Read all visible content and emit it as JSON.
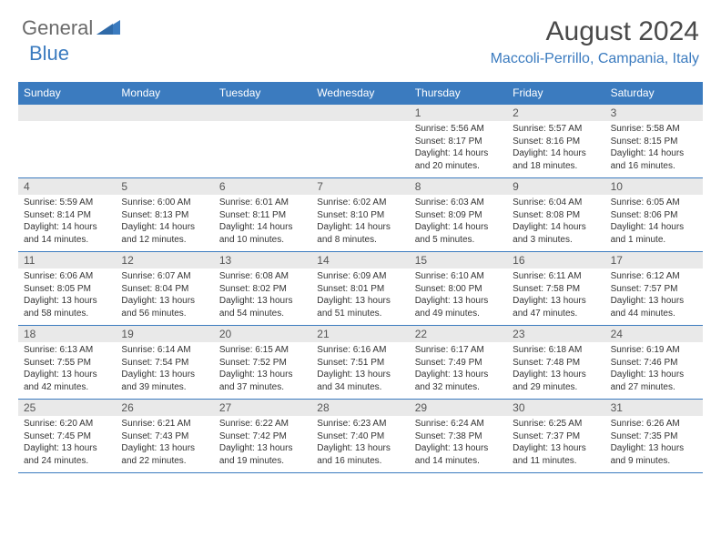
{
  "brand": {
    "general": "General",
    "blue": "Blue"
  },
  "title": "August 2024",
  "location": "Maccoli-Perrillo, Campania, Italy",
  "colors": {
    "header_bg": "#3b7bbf",
    "date_row_bg": "#e9e9e9",
    "text": "#333333",
    "title_text": "#4a4a4a",
    "logo_gray": "#6a6a6a"
  },
  "dayNames": [
    "Sunday",
    "Monday",
    "Tuesday",
    "Wednesday",
    "Thursday",
    "Friday",
    "Saturday"
  ],
  "weeks": [
    {
      "dates": [
        "",
        "",
        "",
        "",
        1,
        2,
        3
      ],
      "cells": [
        null,
        null,
        null,
        null,
        {
          "sunrise": "5:56 AM",
          "sunset": "8:17 PM",
          "daylight": "14 hours and 20 minutes."
        },
        {
          "sunrise": "5:57 AM",
          "sunset": "8:16 PM",
          "daylight": "14 hours and 18 minutes."
        },
        {
          "sunrise": "5:58 AM",
          "sunset": "8:15 PM",
          "daylight": "14 hours and 16 minutes."
        }
      ]
    },
    {
      "dates": [
        4,
        5,
        6,
        7,
        8,
        9,
        10
      ],
      "cells": [
        {
          "sunrise": "5:59 AM",
          "sunset": "8:14 PM",
          "daylight": "14 hours and 14 minutes."
        },
        {
          "sunrise": "6:00 AM",
          "sunset": "8:13 PM",
          "daylight": "14 hours and 12 minutes."
        },
        {
          "sunrise": "6:01 AM",
          "sunset": "8:11 PM",
          "daylight": "14 hours and 10 minutes."
        },
        {
          "sunrise": "6:02 AM",
          "sunset": "8:10 PM",
          "daylight": "14 hours and 8 minutes."
        },
        {
          "sunrise": "6:03 AM",
          "sunset": "8:09 PM",
          "daylight": "14 hours and 5 minutes."
        },
        {
          "sunrise": "6:04 AM",
          "sunset": "8:08 PM",
          "daylight": "14 hours and 3 minutes."
        },
        {
          "sunrise": "6:05 AM",
          "sunset": "8:06 PM",
          "daylight": "14 hours and 1 minute."
        }
      ]
    },
    {
      "dates": [
        11,
        12,
        13,
        14,
        15,
        16,
        17
      ],
      "cells": [
        {
          "sunrise": "6:06 AM",
          "sunset": "8:05 PM",
          "daylight": "13 hours and 58 minutes."
        },
        {
          "sunrise": "6:07 AM",
          "sunset": "8:04 PM",
          "daylight": "13 hours and 56 minutes."
        },
        {
          "sunrise": "6:08 AM",
          "sunset": "8:02 PM",
          "daylight": "13 hours and 54 minutes."
        },
        {
          "sunrise": "6:09 AM",
          "sunset": "8:01 PM",
          "daylight": "13 hours and 51 minutes."
        },
        {
          "sunrise": "6:10 AM",
          "sunset": "8:00 PM",
          "daylight": "13 hours and 49 minutes."
        },
        {
          "sunrise": "6:11 AM",
          "sunset": "7:58 PM",
          "daylight": "13 hours and 47 minutes."
        },
        {
          "sunrise": "6:12 AM",
          "sunset": "7:57 PM",
          "daylight": "13 hours and 44 minutes."
        }
      ]
    },
    {
      "dates": [
        18,
        19,
        20,
        21,
        22,
        23,
        24
      ],
      "cells": [
        {
          "sunrise": "6:13 AM",
          "sunset": "7:55 PM",
          "daylight": "13 hours and 42 minutes."
        },
        {
          "sunrise": "6:14 AM",
          "sunset": "7:54 PM",
          "daylight": "13 hours and 39 minutes."
        },
        {
          "sunrise": "6:15 AM",
          "sunset": "7:52 PM",
          "daylight": "13 hours and 37 minutes."
        },
        {
          "sunrise": "6:16 AM",
          "sunset": "7:51 PM",
          "daylight": "13 hours and 34 minutes."
        },
        {
          "sunrise": "6:17 AM",
          "sunset": "7:49 PM",
          "daylight": "13 hours and 32 minutes."
        },
        {
          "sunrise": "6:18 AM",
          "sunset": "7:48 PM",
          "daylight": "13 hours and 29 minutes."
        },
        {
          "sunrise": "6:19 AM",
          "sunset": "7:46 PM",
          "daylight": "13 hours and 27 minutes."
        }
      ]
    },
    {
      "dates": [
        25,
        26,
        27,
        28,
        29,
        30,
        31
      ],
      "cells": [
        {
          "sunrise": "6:20 AM",
          "sunset": "7:45 PM",
          "daylight": "13 hours and 24 minutes."
        },
        {
          "sunrise": "6:21 AM",
          "sunset": "7:43 PM",
          "daylight": "13 hours and 22 minutes."
        },
        {
          "sunrise": "6:22 AM",
          "sunset": "7:42 PM",
          "daylight": "13 hours and 19 minutes."
        },
        {
          "sunrise": "6:23 AM",
          "sunset": "7:40 PM",
          "daylight": "13 hours and 16 minutes."
        },
        {
          "sunrise": "6:24 AM",
          "sunset": "7:38 PM",
          "daylight": "13 hours and 14 minutes."
        },
        {
          "sunrise": "6:25 AM",
          "sunset": "7:37 PM",
          "daylight": "13 hours and 11 minutes."
        },
        {
          "sunrise": "6:26 AM",
          "sunset": "7:35 PM",
          "daylight": "13 hours and 9 minutes."
        }
      ]
    }
  ]
}
